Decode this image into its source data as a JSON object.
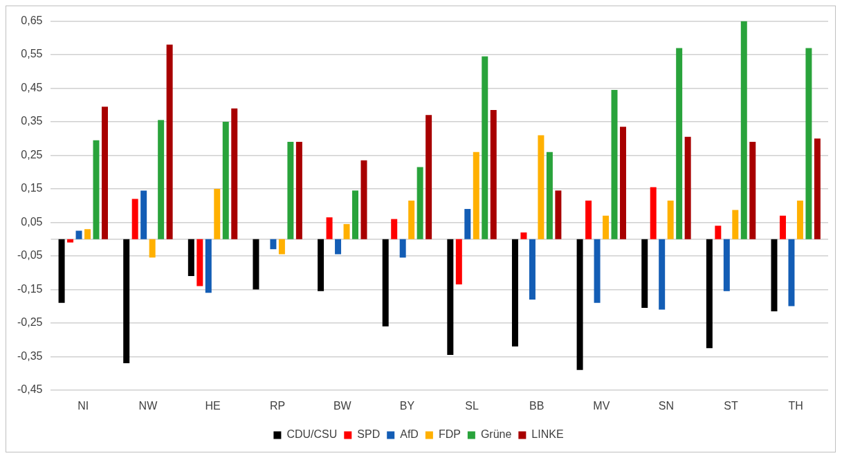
{
  "chart_data": {
    "type": "bar",
    "categories": [
      "NI",
      "NW",
      "HE",
      "RP",
      "BW",
      "BY",
      "SL",
      "BB",
      "MV",
      "SN",
      "ST",
      "TH"
    ],
    "series": [
      {
        "name": "CDU/CSU",
        "color": "#000000",
        "values": [
          -0.19,
          -0.37,
          -0.11,
          -0.15,
          -0.155,
          -0.26,
          -0.345,
          -0.32,
          -0.39,
          -0.205,
          -0.325,
          -0.215
        ]
      },
      {
        "name": "SPD",
        "color": "#ff0000",
        "values": [
          -0.01,
          0.12,
          -0.14,
          0,
          0.065,
          0.06,
          -0.135,
          0.02,
          0.115,
          0.155,
          0.04,
          0.07
        ]
      },
      {
        "name": "AfD",
        "color": "#135db5",
        "values": [
          0.025,
          0.145,
          -0.16,
          -0.03,
          -0.045,
          -0.055,
          0.09,
          -0.18,
          -0.19,
          -0.21,
          -0.155,
          -0.2
        ]
      },
      {
        "name": "FDP",
        "color": "#ffb000",
        "values": [
          0.03,
          -0.055,
          0.15,
          -0.045,
          0.045,
          0.115,
          0.26,
          0.31,
          0.07,
          0.115,
          0.087,
          0.115
        ]
      },
      {
        "name": "Grüne",
        "color": "#29a33b",
        "values": [
          0.295,
          0.355,
          0.35,
          0.29,
          0.145,
          0.215,
          0.545,
          0.26,
          0.445,
          0.57,
          0.65,
          0.57
        ]
      },
      {
        "name": "LINKE",
        "color": "#a80000",
        "values": [
          0.395,
          0.58,
          0.39,
          0.29,
          0.235,
          0.37,
          0.385,
          0.145,
          0.335,
          0.305,
          0.29,
          0.3
        ]
      }
    ],
    "ylim": [
      -0.45,
      0.65
    ],
    "yticks": [
      {
        "value": 0.65,
        "label": "0,65"
      },
      {
        "value": 0.55,
        "label": "0,55"
      },
      {
        "value": 0.45,
        "label": "0,45"
      },
      {
        "value": 0.35,
        "label": "0,35"
      },
      {
        "value": 0.25,
        "label": "0,25"
      },
      {
        "value": 0.15,
        "label": "0,15"
      },
      {
        "value": 0.05,
        "label": "0,05"
      },
      {
        "value": -0.05,
        "label": "-0,05"
      },
      {
        "value": -0.15,
        "label": "-0,15"
      },
      {
        "value": -0.25,
        "label": "-0,25"
      },
      {
        "value": -0.35,
        "label": "-0,35"
      },
      {
        "value": -0.45,
        "label": "-0,45"
      }
    ],
    "grid": "y",
    "legend": "bottom"
  }
}
